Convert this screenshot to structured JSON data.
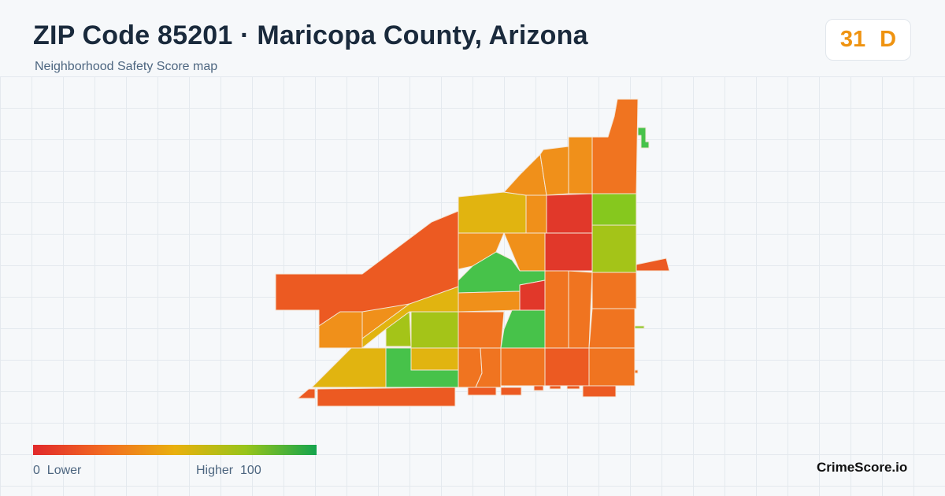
{
  "header": {
    "title": "ZIP Code 85201 · Maricopa County, Arizona",
    "subtitle": "Neighborhood Safety Score map"
  },
  "score": {
    "value": "31",
    "grade": "D",
    "color": "#ef9310"
  },
  "legend": {
    "min_value": "0",
    "min_label": "Lower",
    "max_label": "Higher",
    "max_value": "100",
    "colors": [
      "#e1292b",
      "#f26b21",
      "#e9b00e",
      "#98c41a",
      "#14a44d"
    ]
  },
  "brand": "CrimeScore.io",
  "palette": {
    "red": "#e1382a",
    "red_orange": "#ec5a22",
    "orange": "#f07420",
    "amber": "#f0901a",
    "yellow": "#e1b410",
    "yellow_green": "#a4c418",
    "light_green": "#86c81e",
    "green": "#47c24a"
  }
}
